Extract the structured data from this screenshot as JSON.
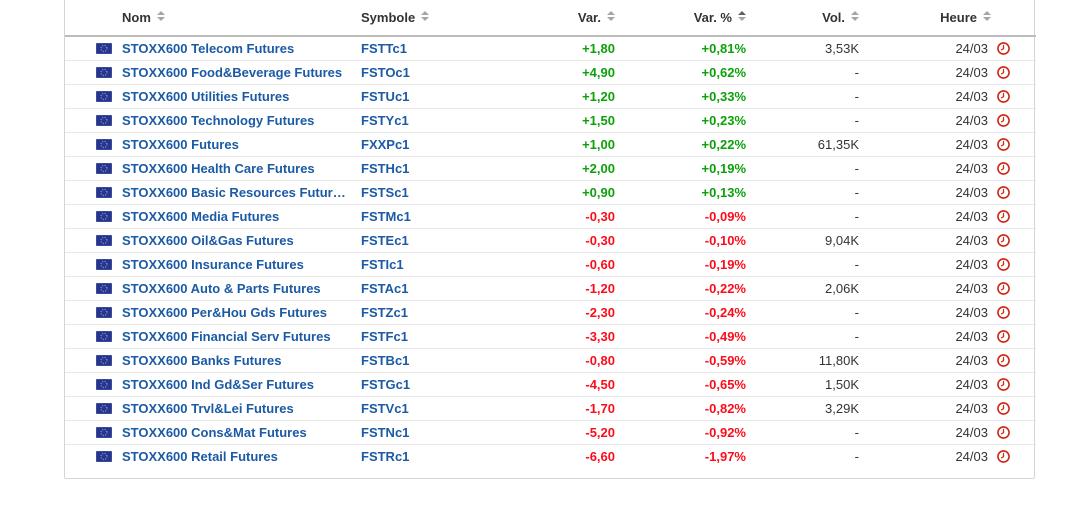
{
  "colors": {
    "up": "#0ea10a",
    "down": "#fb0d1b",
    "link_blue": "#1b5aa5",
    "clock_red": "#d02715",
    "flag_blue": "#26348b"
  },
  "table": {
    "columns": [
      {
        "key": "name",
        "label": "Nom",
        "align": "left",
        "sorted": false
      },
      {
        "key": "symbol",
        "label": "Symbole",
        "align": "left",
        "sorted": false
      },
      {
        "key": "var",
        "label": "Var.",
        "align": "right",
        "sorted": false
      },
      {
        "key": "varPct",
        "label": "Var. %",
        "align": "right",
        "sorted": true
      },
      {
        "key": "vol",
        "label": "Vol.",
        "align": "right",
        "sorted": false
      },
      {
        "key": "time",
        "label": "Heure",
        "align": "right",
        "sorted": false
      }
    ],
    "rows": [
      {
        "flag": "eu-flag-icon",
        "name": "STOXX600 Telecom Futures",
        "symbol": "FSTTc1",
        "var": "+1,80",
        "varPct": "+0,81%",
        "vol": "3,53K",
        "time": "24/03",
        "direction": "up"
      },
      {
        "flag": "eu-flag-icon",
        "name": "STOXX600 Food&Beverage Futures",
        "symbol": "FSTOc1",
        "var": "+4,90",
        "varPct": "+0,62%",
        "vol": "-",
        "time": "24/03",
        "direction": "up"
      },
      {
        "flag": "eu-flag-icon",
        "name": "STOXX600 Utilities Futures",
        "symbol": "FSTUc1",
        "var": "+1,20",
        "varPct": "+0,33%",
        "vol": "-",
        "time": "24/03",
        "direction": "up"
      },
      {
        "flag": "eu-flag-icon",
        "name": "STOXX600 Technology Futures",
        "symbol": "FSTYc1",
        "var": "+1,50",
        "varPct": "+0,23%",
        "vol": "-",
        "time": "24/03",
        "direction": "up"
      },
      {
        "flag": "eu-flag-icon",
        "name": "STOXX600 Futures",
        "symbol": "FXXPc1",
        "var": "+1,00",
        "varPct": "+0,22%",
        "vol": "61,35K",
        "time": "24/03",
        "direction": "up"
      },
      {
        "flag": "eu-flag-icon",
        "name": "STOXX600 Health Care Futures",
        "symbol": "FSTHc1",
        "var": "+2,00",
        "varPct": "+0,19%",
        "vol": "-",
        "time": "24/03",
        "direction": "up"
      },
      {
        "flag": "eu-flag-icon",
        "name": "STOXX600 Basic Resources Futur…",
        "symbol": "FSTSc1",
        "var": "+0,90",
        "varPct": "+0,13%",
        "vol": "-",
        "time": "24/03",
        "direction": "up"
      },
      {
        "flag": "eu-flag-icon",
        "name": "STOXX600 Media Futures",
        "symbol": "FSTMc1",
        "var": "-0,30",
        "varPct": "-0,09%",
        "vol": "-",
        "time": "24/03",
        "direction": "down"
      },
      {
        "flag": "eu-flag-icon",
        "name": "STOXX600 Oil&Gas Futures",
        "symbol": "FSTEc1",
        "var": "-0,30",
        "varPct": "-0,10%",
        "vol": "9,04K",
        "time": "24/03",
        "direction": "down"
      },
      {
        "flag": "eu-flag-icon",
        "name": "STOXX600 Insurance Futures",
        "symbol": "FSTIc1",
        "var": "-0,60",
        "varPct": "-0,19%",
        "vol": "-",
        "time": "24/03",
        "direction": "down"
      },
      {
        "flag": "eu-flag-icon",
        "name": "STOXX600 Auto & Parts Futures",
        "symbol": "FSTAc1",
        "var": "-1,20",
        "varPct": "-0,22%",
        "vol": "2,06K",
        "time": "24/03",
        "direction": "down"
      },
      {
        "flag": "eu-flag-icon",
        "name": "STOXX600 Per&Hou Gds Futures",
        "symbol": "FSTZc1",
        "var": "-2,30",
        "varPct": "-0,24%",
        "vol": "-",
        "time": "24/03",
        "direction": "down"
      },
      {
        "flag": "eu-flag-icon",
        "name": "STOXX600 Financial Serv Futures",
        "symbol": "FSTFc1",
        "var": "-3,30",
        "varPct": "-0,49%",
        "vol": "-",
        "time": "24/03",
        "direction": "down"
      },
      {
        "flag": "eu-flag-icon",
        "name": "STOXX600 Banks Futures",
        "symbol": "FSTBc1",
        "var": "-0,80",
        "varPct": "-0,59%",
        "vol": "11,80K",
        "time": "24/03",
        "direction": "down"
      },
      {
        "flag": "eu-flag-icon",
        "name": "STOXX600 Ind Gd&Ser Futures",
        "symbol": "FSTGc1",
        "var": "-4,50",
        "varPct": "-0,65%",
        "vol": "1,50K",
        "time": "24/03",
        "direction": "down"
      },
      {
        "flag": "eu-flag-icon",
        "name": "STOXX600 Trvl&Lei Futures",
        "symbol": "FSTVc1",
        "var": "-1,70",
        "varPct": "-0,82%",
        "vol": "3,29K",
        "time": "24/03",
        "direction": "down"
      },
      {
        "flag": "eu-flag-icon",
        "name": "STOXX600 Cons&Mat Futures",
        "symbol": "FSTNc1",
        "var": "-5,20",
        "varPct": "-0,92%",
        "vol": "-",
        "time": "24/03",
        "direction": "down"
      },
      {
        "flag": "eu-flag-icon",
        "name": "STOXX600 Retail Futures",
        "symbol": "FSTRc1",
        "var": "-6,60",
        "varPct": "-1,97%",
        "vol": "-",
        "time": "24/03",
        "direction": "down"
      }
    ]
  }
}
